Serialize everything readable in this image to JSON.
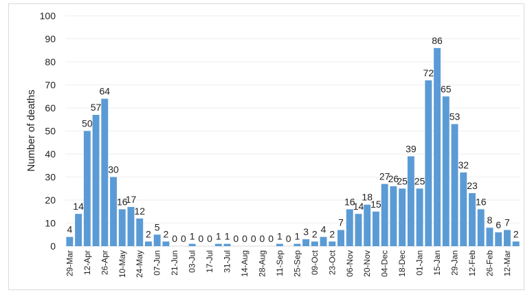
{
  "chart_data": {
    "type": "bar",
    "title": "",
    "xlabel": "",
    "ylabel": "Number of deaths",
    "ylim": [
      0,
      100
    ],
    "yticks": [
      0,
      10,
      20,
      30,
      40,
      50,
      60,
      70,
      80,
      90,
      100
    ],
    "grid": true,
    "bar_color": "#5b9bd5",
    "categories": [
      "29-Mar",
      "",
      "12-Apr",
      "",
      "26-Apr",
      "",
      "10-May",
      "",
      "24-May",
      "",
      "07-Jun",
      "",
      "21-Jun",
      "",
      "03-Jul",
      "",
      "17-Jul",
      "",
      "31-Jul",
      "",
      "14-Aug",
      "",
      "28-Aug",
      "",
      "11-Sep",
      "",
      "25-Sep",
      "",
      "09-Oct",
      "",
      "23-Oct",
      "",
      "06-Nov",
      "",
      "20-Nov",
      "",
      "04-Dec",
      "",
      "18-Dec",
      "",
      "01-Jan",
      "",
      "15-Jan",
      "",
      "29-Jan",
      "",
      "12-Feb",
      "",
      "26-Feb",
      "",
      "12-Mar",
      ""
    ],
    "values": [
      4,
      14,
      50,
      57,
      64,
      30,
      16,
      17,
      12,
      2,
      5,
      2,
      0,
      0,
      1,
      0,
      0,
      1,
      1,
      0,
      0,
      0,
      0,
      0,
      1,
      0,
      1,
      3,
      2,
      4,
      2,
      7,
      16,
      14,
      18,
      15,
      27,
      26,
      25,
      39,
      25,
      72,
      86,
      65,
      53,
      32,
      23,
      16,
      8,
      6,
      7,
      2
    ]
  }
}
